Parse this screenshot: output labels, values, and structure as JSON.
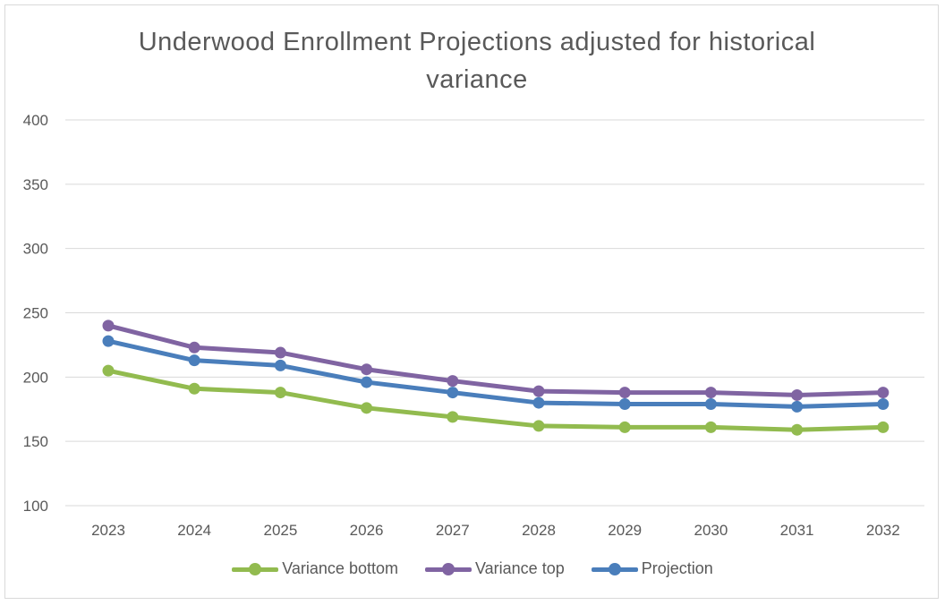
{
  "chart_data": {
    "type": "line",
    "title_lines": [
      "Underwood Enrollment Projections adjusted for historical",
      "variance"
    ],
    "categories": [
      "2023",
      "2024",
      "2025",
      "2026",
      "2027",
      "2028",
      "2029",
      "2030",
      "2031",
      "2032"
    ],
    "ylim": [
      100,
      400
    ],
    "yticks": [
      "400",
      "350",
      "300",
      "250",
      "200",
      "150",
      "100"
    ],
    "grid": true,
    "legend_position": "bottom",
    "series": [
      {
        "name": "Variance bottom",
        "color": "#92bb4f",
        "values": [
          205,
          191,
          188,
          176,
          169,
          162,
          161,
          161,
          159,
          161
        ]
      },
      {
        "name": "Variance top",
        "color": "#8064a2",
        "values": [
          240,
          223,
          219,
          206,
          197,
          189,
          188,
          188,
          186,
          188
        ]
      },
      {
        "name": "Projection",
        "color": "#4a7ebb",
        "values": [
          228,
          213,
          209,
          196,
          188,
          180,
          179,
          179,
          177,
          179
        ]
      }
    ]
  }
}
